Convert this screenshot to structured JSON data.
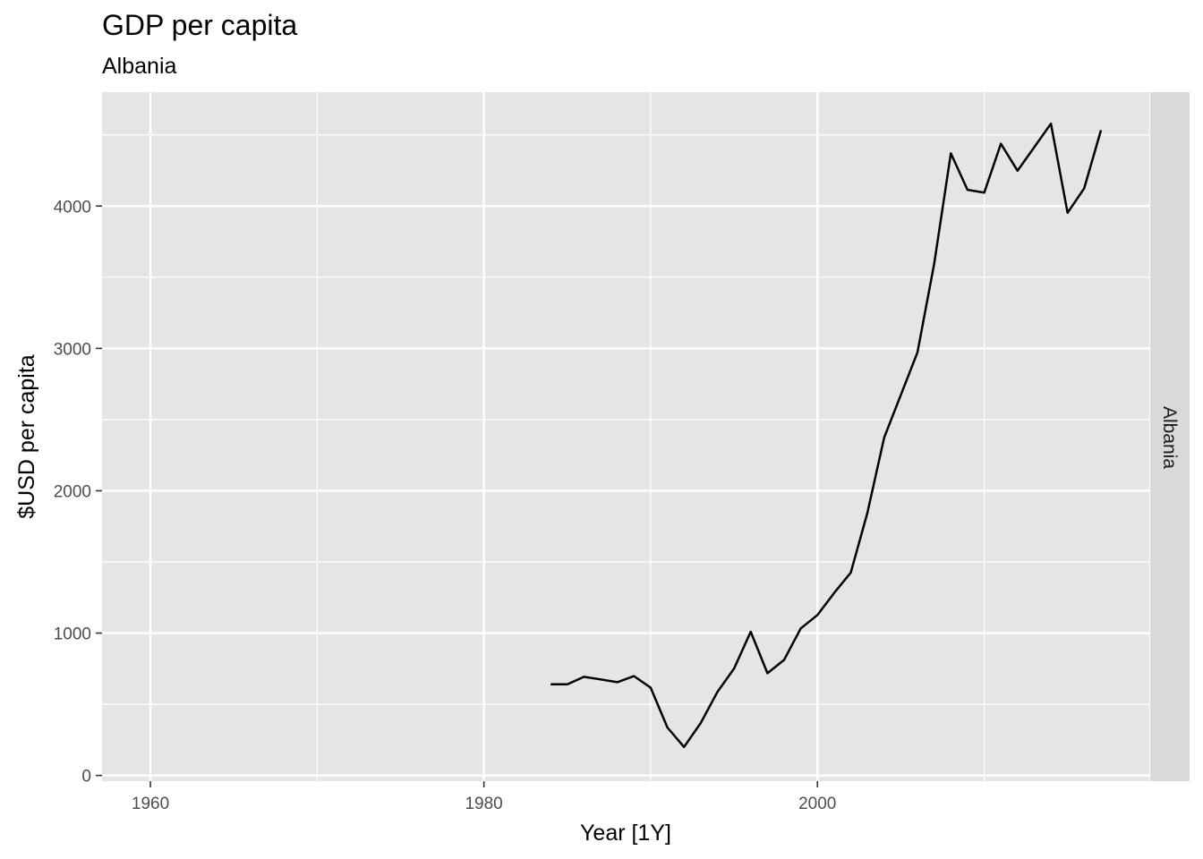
{
  "chart_data": {
    "type": "line",
    "title": "GDP per capita",
    "subtitle": "Albania",
    "xlabel": "Year [1Y]",
    "ylabel": "$USD per capita",
    "facet_label": "Albania",
    "xlim": [
      1957.1,
      2019.9
    ],
    "ylim": [
      -40,
      4800
    ],
    "x_ticks": [
      1960,
      1980,
      2000
    ],
    "x_minor_ticks": [
      1970,
      1990,
      2010
    ],
    "y_ticks": [
      0,
      1000,
      2000,
      3000,
      4000
    ],
    "y_minor_ticks": [
      500,
      1500,
      2500,
      3500,
      4500
    ],
    "grid": true,
    "colors": {
      "panel": "#e5e5e5",
      "grid": "#ffffff",
      "strip": "#d9d9d9",
      "line": "#000000"
    },
    "series": [
      {
        "x": [
          1984,
          1985,
          1986,
          1987,
          1988,
          1989,
          1990,
          1991,
          1992,
          1993,
          1994,
          1995,
          1996,
          1997,
          1998,
          1999,
          2000,
          2001,
          2002,
          2003,
          2004,
          2005,
          2006,
          2007,
          2008,
          2009,
          2010,
          2011,
          2012,
          2013,
          2014,
          2015,
          2016,
          2017
        ],
        "values": [
          640,
          640,
          693,
          675,
          655,
          698,
          617,
          337,
          200,
          368,
          587,
          751,
          1010,
          718,
          812,
          1033,
          1127,
          1282,
          1425,
          1846,
          2373,
          2673,
          2972,
          3595,
          4370,
          4114,
          4094,
          4438,
          4248,
          4413,
          4579,
          3953,
          4125,
          4533
        ]
      }
    ]
  }
}
